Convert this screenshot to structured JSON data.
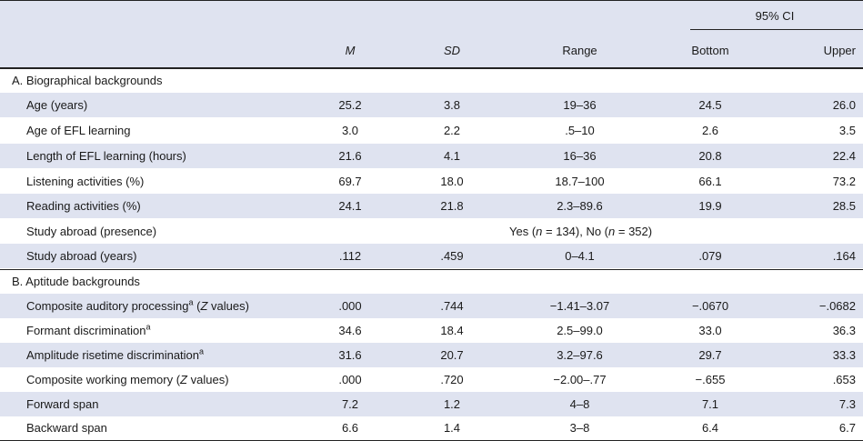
{
  "header": {
    "ci": "95% CI",
    "m": "M",
    "sd": "SD",
    "range": "Range",
    "bottom": "Bottom",
    "upper": "Upper"
  },
  "sections": {
    "a": "A. Biographical backgrounds",
    "b": "B. Aptitude backgrounds"
  },
  "rows": [
    {
      "label": "Age (years)",
      "m": "25.2",
      "sd": "3.8",
      "range": "19–36",
      "bottom": "24.5",
      "upper": "26.0"
    },
    {
      "label": "Age of EFL learning",
      "m": "3.0",
      "sd": "2.2",
      "range": ".5–10",
      "bottom": "2.6",
      "upper": "3.5"
    },
    {
      "label": "Length of EFL learning (hours)",
      "m": "21.6",
      "sd": "4.1",
      "range": "16–36",
      "bottom": "20.8",
      "upper": "22.4"
    },
    {
      "label": "Listening activities (%)",
      "m": "69.7",
      "sd": "18.0",
      "range": "18.7–100",
      "bottom": "66.1",
      "upper": "73.2"
    },
    {
      "label": "Reading activities (%)",
      "m": "24.1",
      "sd": "21.8",
      "range": "2.3–89.6",
      "bottom": "19.9",
      "upper": "28.5"
    },
    {
      "label": "Study abroad (presence)",
      "yes_text": "Yes (",
      "n1_var": "n",
      "n1_val": " = 134), No (",
      "n2_var": "n",
      "n2_val": " = 352)"
    },
    {
      "label": "Study abroad (years)",
      "m": ".112",
      "sd": ".459",
      "range": "0–4.1",
      "bottom": ".079",
      "upper": ".164"
    },
    {
      "label_pre": "Composite auditory processing",
      "sup": "a",
      "label_open": " (",
      "label_z": "Z",
      "label_post": " values)",
      "m": ".000",
      "sd": ".744",
      "range": "−1.41–3.07",
      "bottom": "−.0670",
      "upper": "−.0682"
    },
    {
      "label_pre": "Formant discrimination",
      "sup": "a",
      "m": "34.6",
      "sd": "18.4",
      "range": "2.5–99.0",
      "bottom": "33.0",
      "upper": "36.3"
    },
    {
      "label_pre": "Amplitude risetime discrimination",
      "sup": "a",
      "m": "31.6",
      "sd": "20.7",
      "range": "3.2–97.6",
      "bottom": "29.7",
      "upper": "33.3"
    },
    {
      "label_pre": "Composite working memory (",
      "label_z": "Z",
      "label_post": " values)",
      "m": ".000",
      "sd": ".720",
      "range": "−2.00–.77",
      "bottom": "−.655",
      "upper": ".653"
    },
    {
      "label": "Forward span",
      "m": "7.2",
      "sd": "1.2",
      "range": "4–8",
      "bottom": "7.1",
      "upper": "7.3"
    },
    {
      "label": "Backward span",
      "m": "6.6",
      "sd": "1.4",
      "range": "3–8",
      "bottom": "6.4",
      "upper": "6.7"
    }
  ]
}
